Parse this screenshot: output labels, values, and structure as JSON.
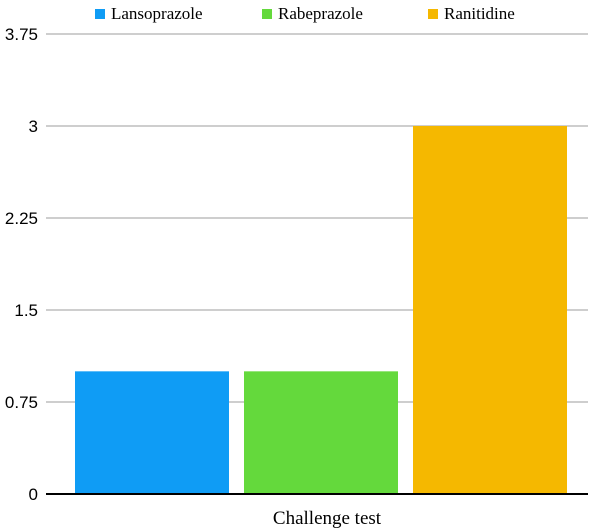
{
  "chart_data": {
    "type": "bar",
    "categories": [
      "Challenge test"
    ],
    "series": [
      {
        "name": "Lansoprazole",
        "values": [
          1
        ],
        "color": "#0f9cf5"
      },
      {
        "name": "Rabeprazole",
        "values": [
          1
        ],
        "color": "#64d93c"
      },
      {
        "name": "Ranitidine",
        "values": [
          3
        ],
        "color": "#f5b800"
      }
    ],
    "yticks": [
      "0",
      "0.75",
      "1.5",
      "2.25",
      "3",
      "3.75"
    ],
    "ytick_values": [
      0,
      0.75,
      1.5,
      2.25,
      3,
      3.75
    ],
    "ylim": [
      0,
      3.75
    ],
    "grid": true,
    "legend": "top-center"
  }
}
